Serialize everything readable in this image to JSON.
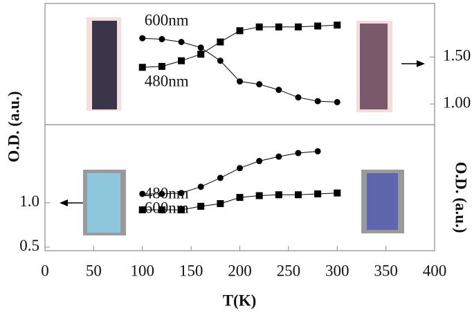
{
  "chart_data": [
    {
      "type": "line",
      "y2label": "O.D. (a.u.)",
      "xlim": [
        0,
        400
      ],
      "y2lim": [
        0.78,
        2.07
      ],
      "y2ticks": [
        {
          "value": 1.5,
          "label": "1.50"
        },
        {
          "value": 1,
          "label": "1.00"
        }
      ],
      "series": [
        {
          "name": "600nm",
          "marker": "circle",
          "color": "#000000",
          "axis": "y2",
          "x": [
            100,
            120,
            140,
            160,
            180,
            200,
            220,
            240,
            260,
            280,
            300
          ],
          "values": [
            1.7,
            1.69,
            1.66,
            1.6,
            1.46,
            1.24,
            1.21,
            1.15,
            1.07,
            1.03,
            1.02
          ]
        },
        {
          "name": "480nm",
          "marker": "square",
          "color": "#000000",
          "axis": "y2",
          "x": [
            100,
            120,
            140,
            160,
            180,
            200,
            220,
            240,
            260,
            280,
            300
          ],
          "values": [
            1.39,
            1.4,
            1.46,
            1.53,
            1.66,
            1.78,
            1.82,
            1.82,
            1.82,
            1.83,
            1.84
          ]
        }
      ]
    },
    {
      "type": "line",
      "ylabel": "O.D. (a.u.)",
      "xlabel": "T(K)",
      "xlim": [
        0,
        400
      ],
      "xticks": [
        0,
        50,
        100,
        150,
        200,
        250,
        300,
        350,
        400
      ],
      "ylim": [
        0.46,
        1.88
      ],
      "yticks": [
        0.5,
        {
          "value": 1,
          "label": "1.0"
        }
      ],
      "series": [
        {
          "name": "600nm",
          "marker": "circle",
          "color": "#000000",
          "x": [
            100,
            120,
            140,
            160,
            180,
            200,
            220,
            240,
            260,
            280
          ],
          "values": [
            1.1,
            1.1,
            1.11,
            1.18,
            1.28,
            1.39,
            1.47,
            1.52,
            1.56,
            1.58
          ]
        },
        {
          "name": "480nm",
          "marker": "square",
          "color": "#000000",
          "x": [
            100,
            120,
            140,
            160,
            180,
            200,
            220,
            240,
            260,
            280,
            300
          ],
          "values": [
            0.92,
            0.92,
            0.92,
            0.96,
            0.99,
            1.06,
            1.08,
            1.09,
            1.09,
            1.1,
            1.11
          ]
        }
      ]
    }
  ]
}
